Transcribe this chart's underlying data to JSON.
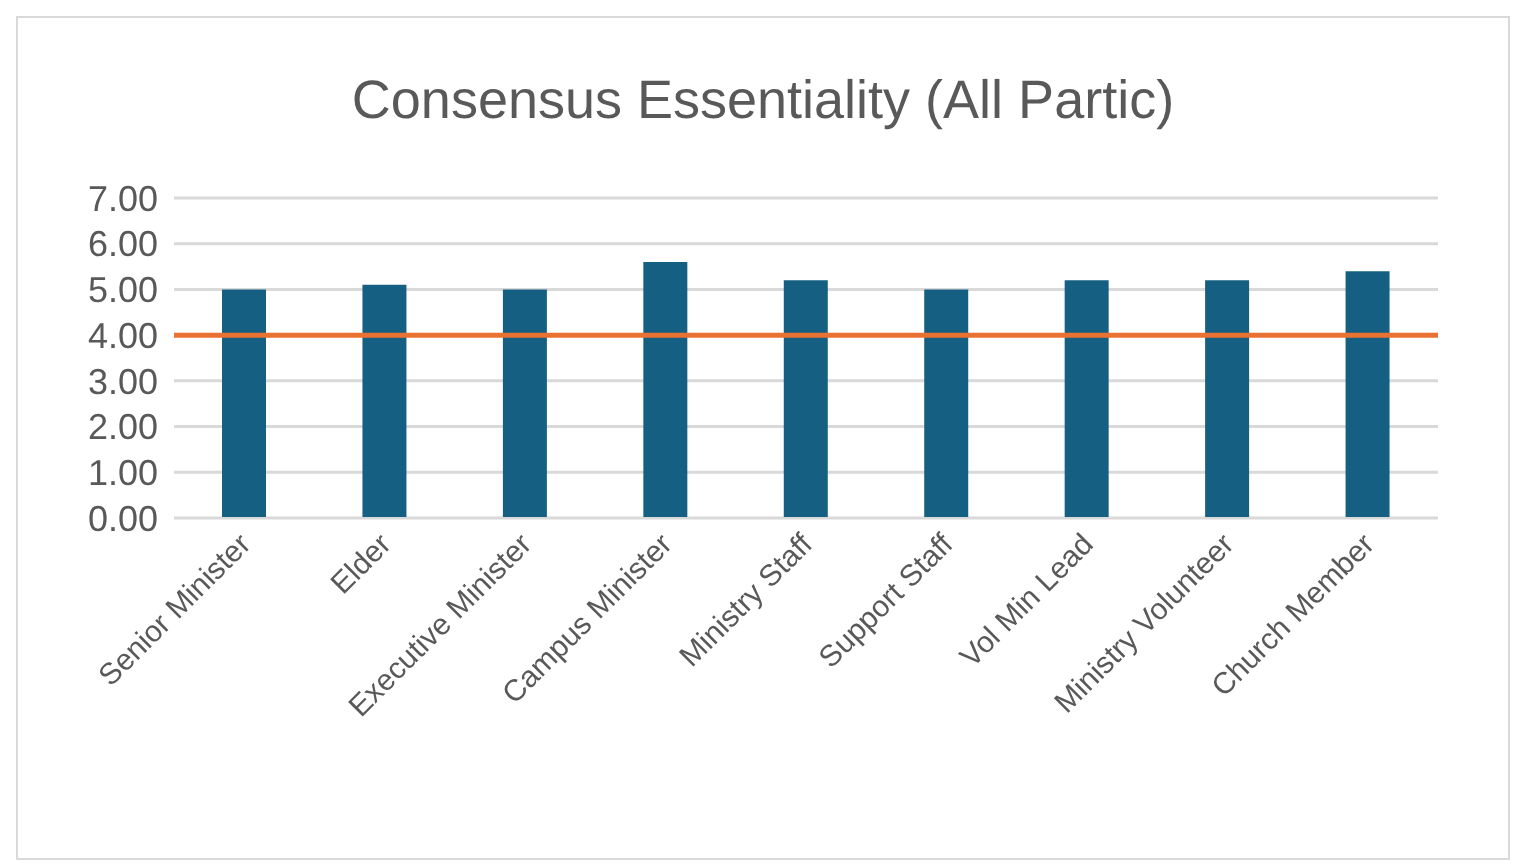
{
  "chart_data": {
    "type": "bar",
    "title": "Consensus Essentiality (All Partic)",
    "categories": [
      "Senior Minister",
      "Elder",
      "Executive Minister",
      "Campus Minister",
      "Ministry Staff",
      "Support Staff",
      "Vol Min Lead",
      "Ministry Volunteer",
      "Church Member"
    ],
    "values": [
      5.0,
      5.1,
      5.0,
      5.6,
      5.2,
      5.0,
      5.2,
      5.2,
      5.4
    ],
    "color": "#156082",
    "ylim": [
      0,
      7
    ],
    "yticks": [
      {
        "value": 0,
        "label": "0.00"
      },
      {
        "value": 1,
        "label": "1.00"
      },
      {
        "value": 2,
        "label": "2.00"
      },
      {
        "value": 3,
        "label": "3.00"
      },
      {
        "value": 4,
        "label": "4.00"
      },
      {
        "value": 5,
        "label": "5.00"
      },
      {
        "value": 6,
        "label": "6.00"
      },
      {
        "value": 7,
        "label": "7.00"
      }
    ],
    "grid": "y",
    "ref_lines": [
      {
        "axis": "y",
        "value": 4,
        "color": "#e97132"
      }
    ]
  }
}
